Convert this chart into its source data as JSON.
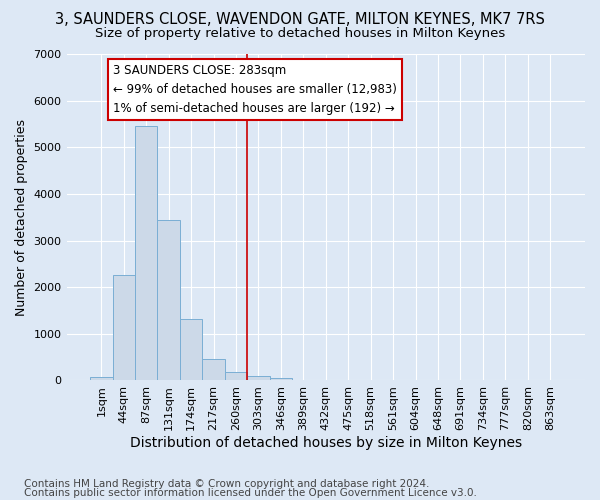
{
  "title": "3, SAUNDERS CLOSE, WAVENDON GATE, MILTON KEYNES, MK7 7RS",
  "subtitle": "Size of property relative to detached houses in Milton Keynes",
  "xlabel": "Distribution of detached houses by size in Milton Keynes",
  "ylabel": "Number of detached properties",
  "bar_color": "#ccd9e8",
  "bar_edge_color": "#7aaed4",
  "bar_categories": [
    "1sqm",
    "44sqm",
    "87sqm",
    "131sqm",
    "174sqm",
    "217sqm",
    "260sqm",
    "303sqm",
    "346sqm",
    "389sqm",
    "432sqm",
    "475sqm",
    "518sqm",
    "561sqm",
    "604sqm",
    "648sqm",
    "691sqm",
    "734sqm",
    "777sqm",
    "820sqm",
    "863sqm"
  ],
  "bar_values": [
    80,
    2270,
    5450,
    3450,
    1320,
    450,
    175,
    100,
    60,
    0,
    0,
    0,
    0,
    0,
    0,
    0,
    0,
    0,
    0,
    0,
    0
  ],
  "vline_x": 6.5,
  "vline_color": "#cc0000",
  "annotation_title": "3 SAUNDERS CLOSE: 283sqm",
  "annotation_line1": "← 99% of detached houses are smaller (12,983)",
  "annotation_line2": "1% of semi-detached houses are larger (192) →",
  "ylim": [
    0,
    7000
  ],
  "yticks": [
    0,
    1000,
    2000,
    3000,
    4000,
    5000,
    6000,
    7000
  ],
  "footer_line1": "Contains HM Land Registry data © Crown copyright and database right 2024.",
  "footer_line2": "Contains public sector information licensed under the Open Government Licence v3.0.",
  "background_color": "#dde8f5",
  "plot_background": "#dde8f5",
  "grid_color": "#ffffff",
  "annotation_box_color": "#ffffff",
  "annotation_box_edge_color": "#cc0000",
  "title_fontsize": 10.5,
  "subtitle_fontsize": 9.5,
  "xlabel_fontsize": 10,
  "ylabel_fontsize": 9,
  "tick_fontsize": 8,
  "annotation_fontsize": 8.5,
  "footer_fontsize": 7.5
}
